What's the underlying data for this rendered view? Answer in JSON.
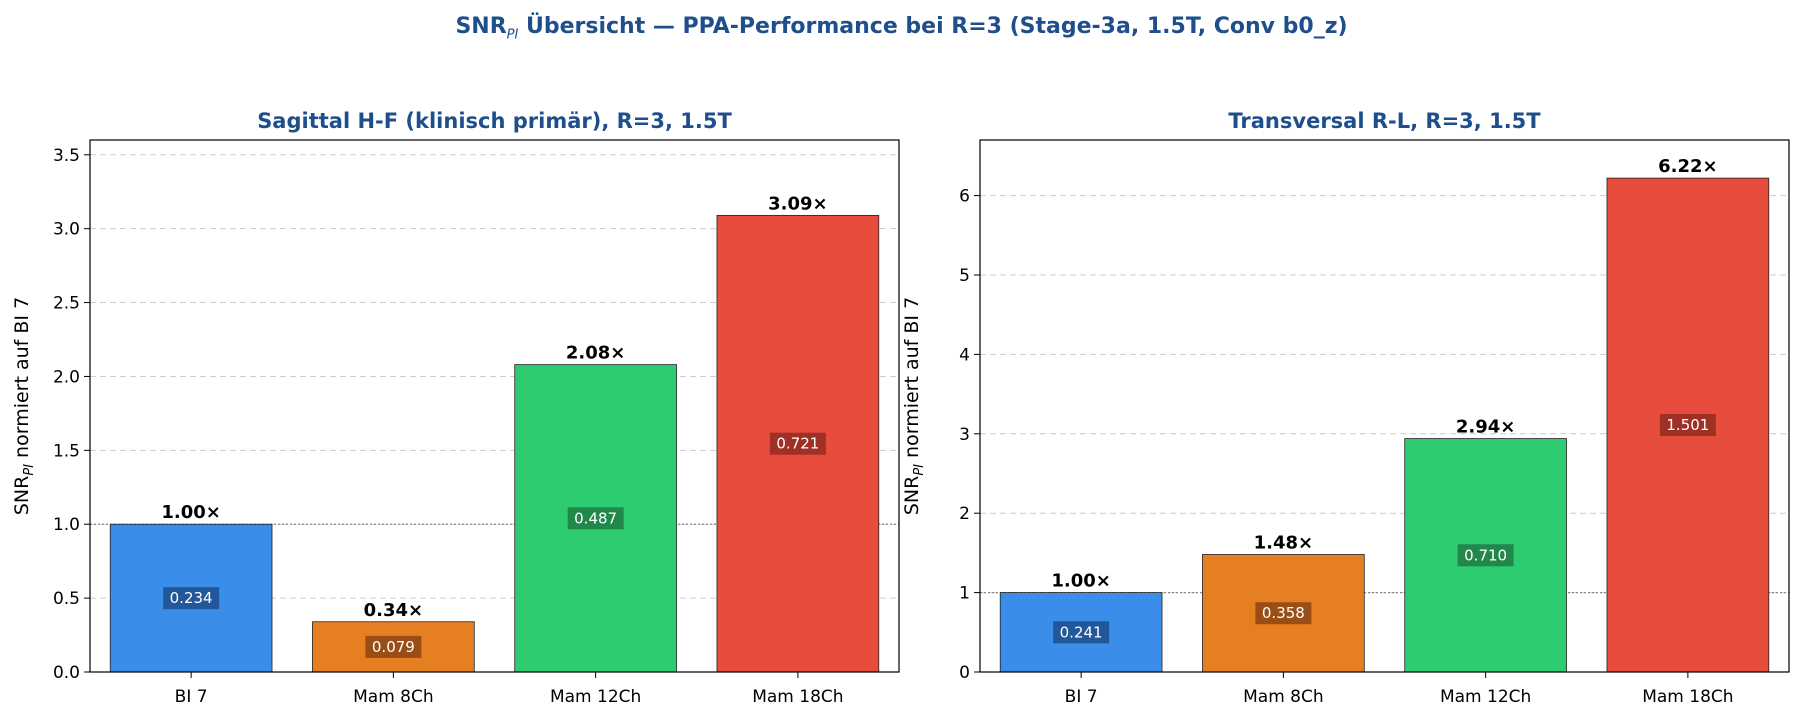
{
  "suptitle": {
    "prefix": "SNR",
    "subscript": "PI",
    "rest": " Übersicht — PPA-Performance bei R=3 (Stage-3a, 1.5T, Conv b0_z)"
  },
  "colors": {
    "title": "#1f4e8c",
    "bars": [
      "#3b8dea",
      "#e67e22",
      "#2ecc71",
      "#e74c3c"
    ],
    "label_boxes": [
      "#1f4e8c",
      "#8b4513",
      "#1e7a44",
      "#922b21"
    ]
  },
  "chart_data": [
    {
      "type": "bar",
      "title": "Sagittal H-F (klinisch primär), R=3, 1.5T",
      "ylabel": {
        "base": "SNR",
        "subscript": "PI",
        "rest": " normiert auf BI 7"
      },
      "categories": [
        "BI 7",
        "Mam 8Ch",
        "Mam 12Ch",
        "Mam 18Ch"
      ],
      "values": [
        1.0,
        0.34,
        2.08,
        3.09
      ],
      "value_labels": [
        "1.00×",
        "0.34×",
        "2.08×",
        "3.09×"
      ],
      "inner_labels": [
        "0.234",
        "0.079",
        "0.487",
        "0.721"
      ],
      "ylim": [
        0,
        3.6
      ],
      "yticks": [
        0.0,
        0.5,
        1.0,
        1.5,
        2.0,
        2.5,
        3.0,
        3.5
      ],
      "ytick_labels": [
        "0.0",
        "0.5",
        "1.0",
        "1.5",
        "2.0",
        "2.5",
        "3.0",
        "3.5"
      ],
      "reference_line": 1.0,
      "grid": true
    },
    {
      "type": "bar",
      "title": "Transversal R-L, R=3, 1.5T",
      "ylabel": {
        "base": "SNR",
        "subscript": "PI",
        "rest": " normiert auf BI 7"
      },
      "categories": [
        "BI 7",
        "Mam 8Ch",
        "Mam 12Ch",
        "Mam 18Ch"
      ],
      "values": [
        1.0,
        1.48,
        2.94,
        6.22
      ],
      "value_labels": [
        "1.00×",
        "1.48×",
        "2.94×",
        "6.22×"
      ],
      "inner_labels": [
        "0.241",
        "0.358",
        "0.710",
        "1.501"
      ],
      "ylim": [
        0,
        6.7
      ],
      "yticks": [
        0,
        1,
        2,
        3,
        4,
        5,
        6
      ],
      "ytick_labels": [
        "0",
        "1",
        "2",
        "3",
        "4",
        "5",
        "6"
      ],
      "reference_line": 1.0,
      "grid": true
    }
  ]
}
